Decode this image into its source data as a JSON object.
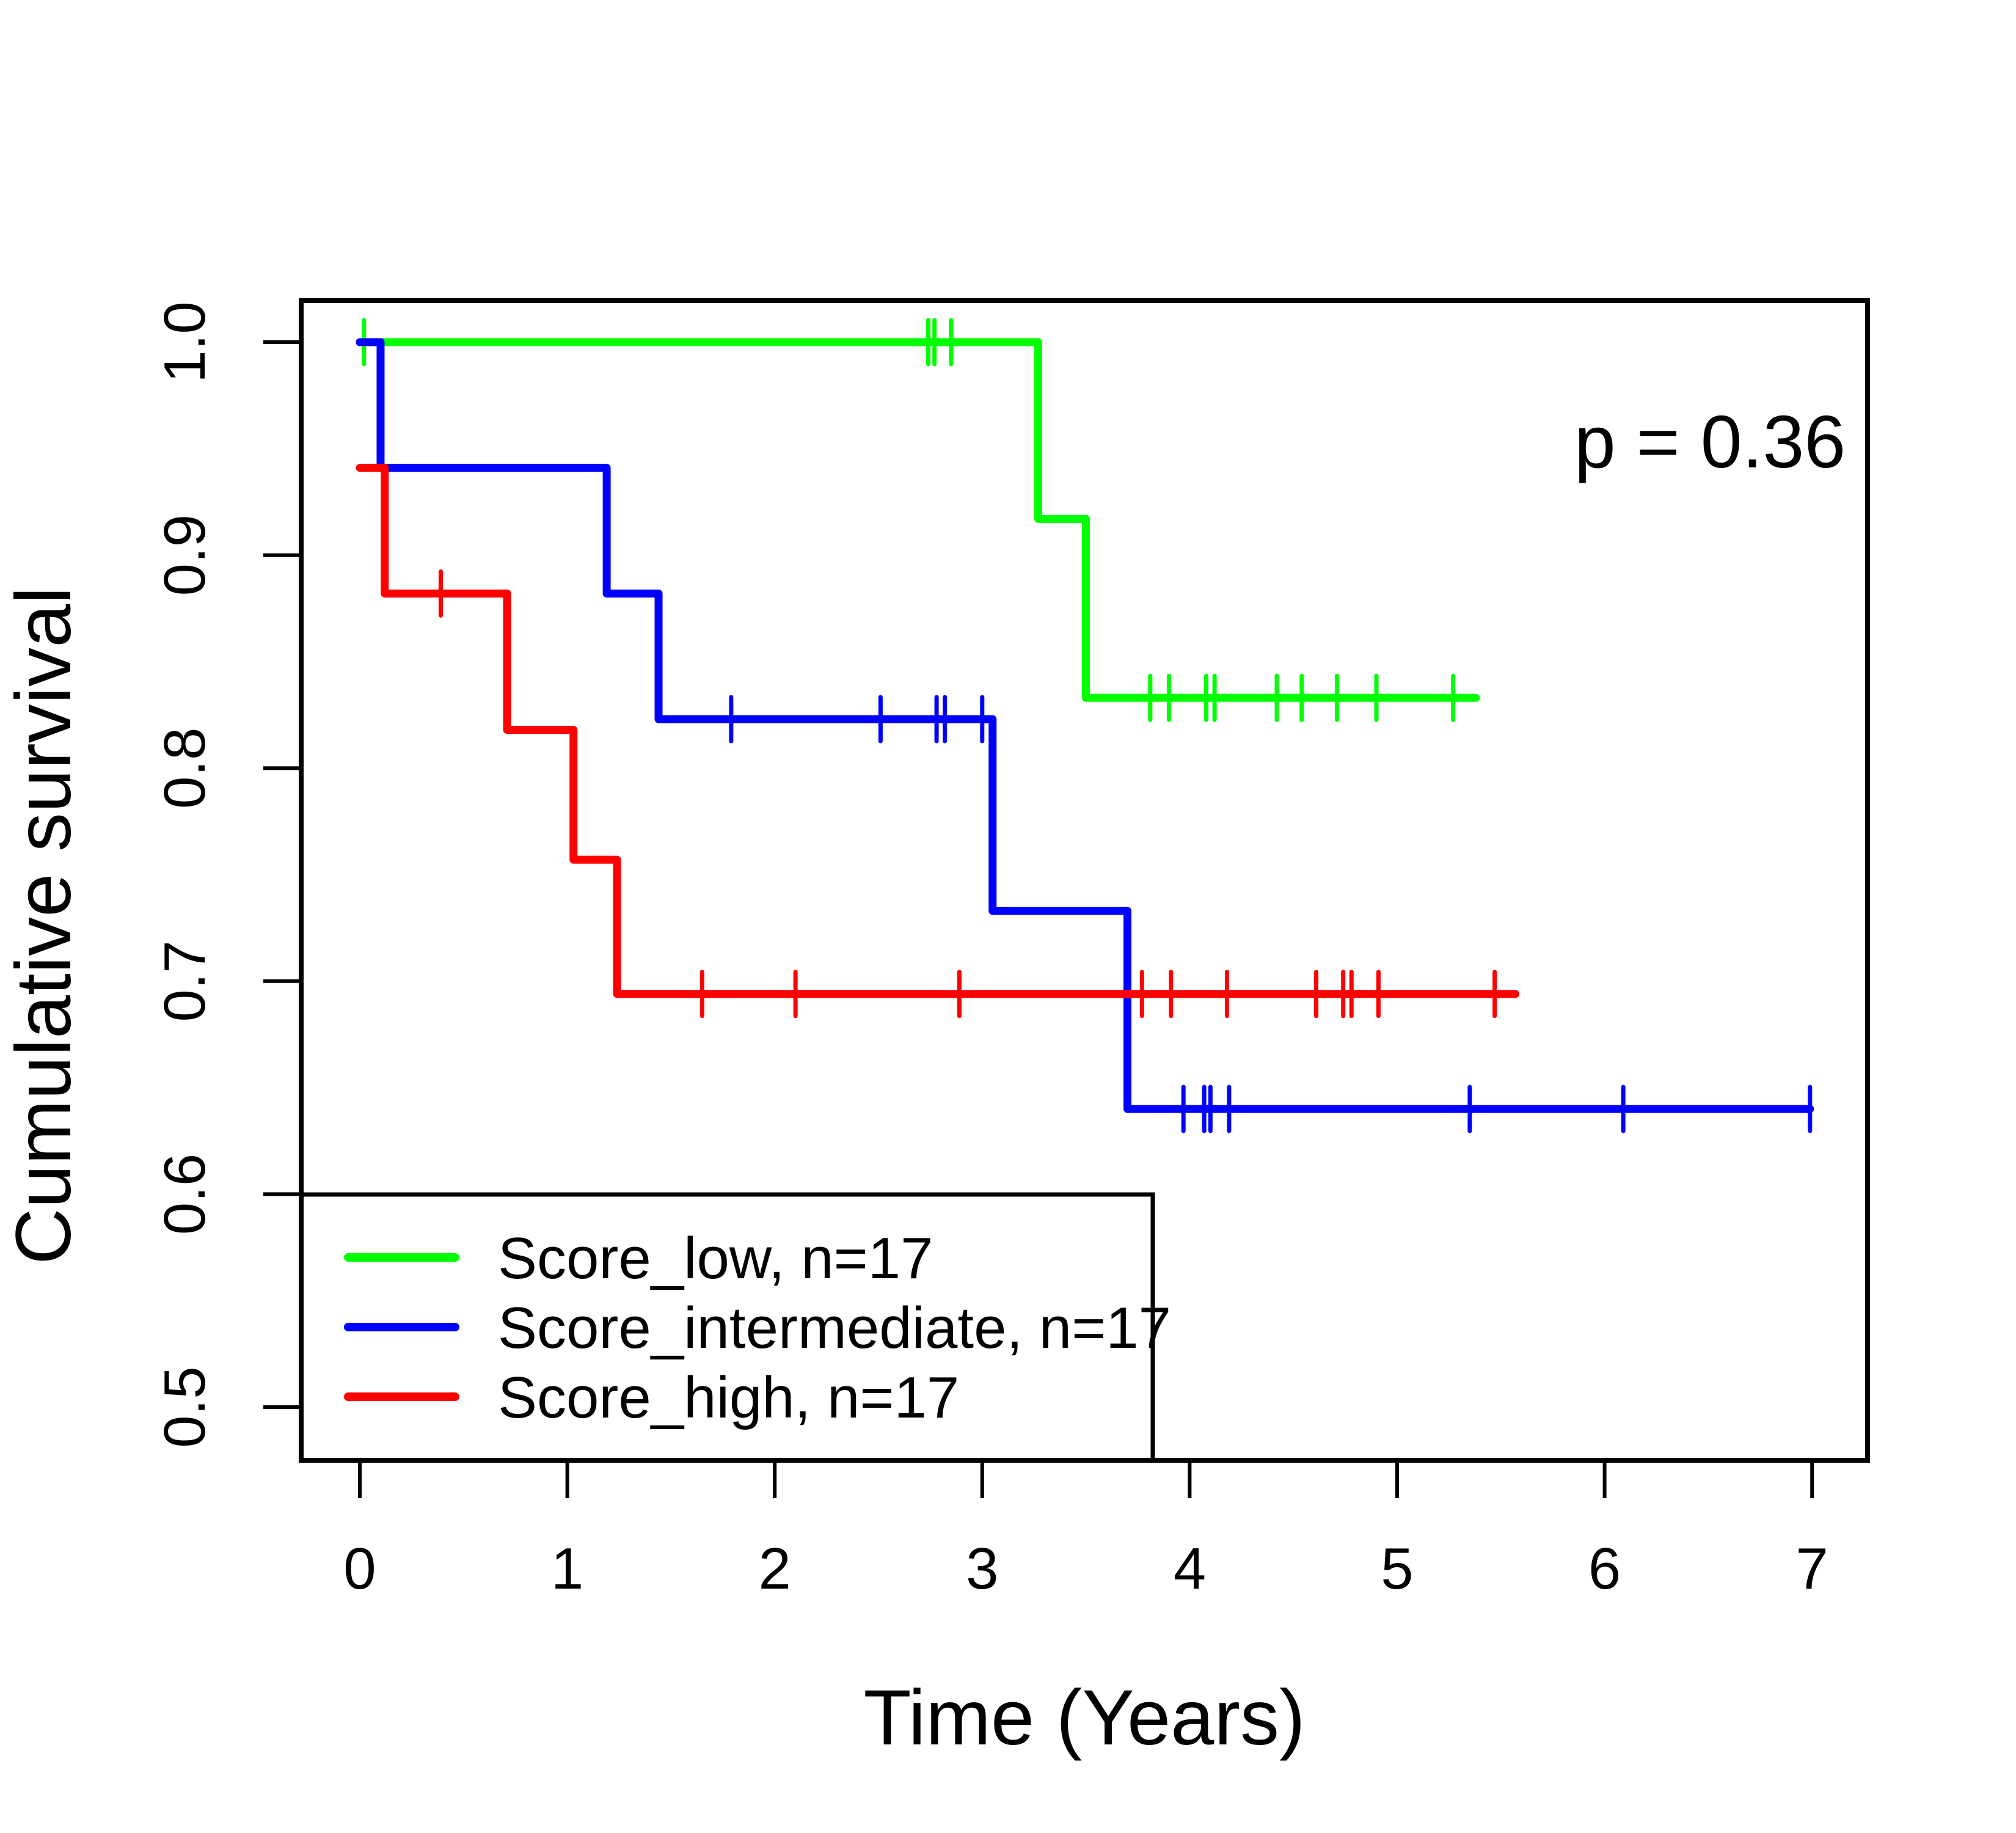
{
  "chart_data": {
    "type": "line",
    "subtype": "kaplan-meier-step",
    "title": "",
    "xlabel": "Time (Years)",
    "ylabel": "Cumulative survival",
    "annotation": "p = 0.36",
    "xlim": [
      0,
      7
    ],
    "ylim": [
      0.5,
      1.0
    ],
    "xticks": [
      "0",
      "1",
      "2",
      "3",
      "4",
      "5",
      "6",
      "7"
    ],
    "yticks": [
      "0.5",
      "0.6",
      "0.7",
      "0.8",
      "0.9",
      "1.0"
    ],
    "grid": false,
    "legend_position": "bottom-left",
    "series": [
      {
        "name": "Score_low, n=17",
        "color": "#00ff00",
        "steps": [
          [
            0,
            1.0
          ],
          [
            3.27,
            1.0
          ],
          [
            3.27,
            0.917
          ],
          [
            3.5,
            0.917
          ],
          [
            3.5,
            0.833
          ],
          [
            5.38,
            0.833
          ]
        ],
        "censor_marks": [
          [
            0.02,
            1.0
          ],
          [
            2.74,
            1.0
          ],
          [
            2.77,
            1.0
          ],
          [
            2.85,
            1.0
          ],
          [
            3.81,
            0.833
          ],
          [
            3.9,
            0.833
          ],
          [
            4.08,
            0.833
          ],
          [
            4.12,
            0.833
          ],
          [
            4.42,
            0.833
          ],
          [
            4.54,
            0.833
          ],
          [
            4.71,
            0.833
          ],
          [
            4.9,
            0.833
          ],
          [
            5.27,
            0.833
          ]
        ]
      },
      {
        "name": "Score_intermediate, n=17",
        "color": "#0000ff",
        "steps": [
          [
            0,
            1.0
          ],
          [
            0.1,
            1.0
          ],
          [
            0.1,
            0.941
          ],
          [
            1.19,
            0.941
          ],
          [
            1.19,
            0.882
          ],
          [
            1.44,
            0.882
          ],
          [
            1.44,
            0.823
          ],
          [
            3.05,
            0.823
          ],
          [
            3.05,
            0.733
          ],
          [
            3.7,
            0.733
          ],
          [
            3.7,
            0.64
          ],
          [
            6.99,
            0.64
          ]
        ],
        "censor_marks": [
          [
            1.79,
            0.823
          ],
          [
            2.51,
            0.823
          ],
          [
            2.78,
            0.823
          ],
          [
            2.82,
            0.823
          ],
          [
            3.0,
            0.823
          ],
          [
            3.97,
            0.64
          ],
          [
            4.07,
            0.64
          ],
          [
            4.1,
            0.64
          ],
          [
            4.19,
            0.64
          ],
          [
            5.35,
            0.64
          ],
          [
            6.09,
            0.64
          ],
          [
            6.99,
            0.64
          ]
        ]
      },
      {
        "name": "Score_high, n=17",
        "color": "#ff0000",
        "steps": [
          [
            0,
            0.941
          ],
          [
            0.12,
            0.941
          ],
          [
            0.12,
            0.882
          ],
          [
            0.71,
            0.882
          ],
          [
            0.71,
            0.818
          ],
          [
            1.03,
            0.818
          ],
          [
            1.03,
            0.757
          ],
          [
            1.24,
            0.757
          ],
          [
            1.24,
            0.694
          ],
          [
            5.57,
            0.694
          ]
        ],
        "censor_marks": [
          [
            0.39,
            0.882
          ],
          [
            1.65,
            0.694
          ],
          [
            2.1,
            0.694
          ],
          [
            2.89,
            0.694
          ],
          [
            3.77,
            0.694
          ],
          [
            3.91,
            0.694
          ],
          [
            4.18,
            0.694
          ],
          [
            4.61,
            0.694
          ],
          [
            4.74,
            0.694
          ],
          [
            4.78,
            0.694
          ],
          [
            4.91,
            0.694
          ],
          [
            5.47,
            0.694
          ]
        ]
      }
    ]
  },
  "labels": {
    "p_value": "p = 0.36",
    "x_axis": "Time (Years)",
    "y_axis": "Cumulative survival"
  },
  "legend": {
    "entries": [
      {
        "label": "Score_low, n=17",
        "color": "#00ff00"
      },
      {
        "label": "Score_intermediate, n=17",
        "color": "#0000ff"
      },
      {
        "label": "Score_high, n=17",
        "color": "#ff0000"
      }
    ]
  },
  "colors": {
    "score_low": "#00ff00",
    "score_intermediate": "#0000ff",
    "score_high": "#ff0000",
    "axis": "#000000",
    "background": "#ffffff"
  }
}
